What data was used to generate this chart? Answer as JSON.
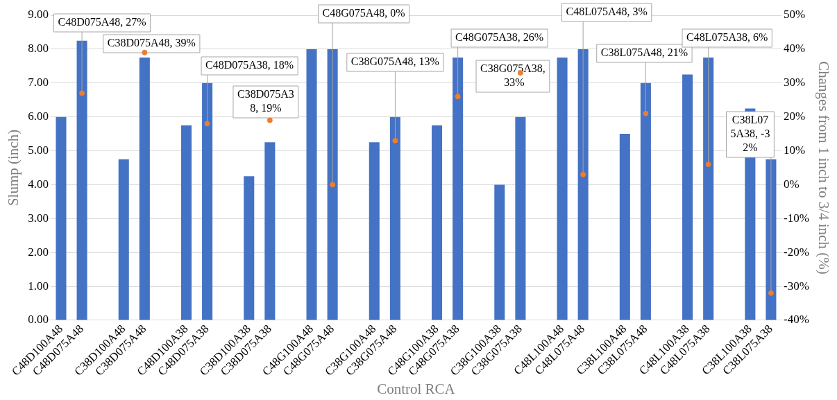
{
  "chart_data": {
    "type": "bar",
    "xlabel": "Control RCA",
    "ylabel": "Slump (inch)",
    "y2label": "Changes from 1 inch to 3/4 inch (%)",
    "categories": [
      "C48D100A48",
      "C48D075A48",
      null,
      "C38D100A48",
      "C38D075A48",
      null,
      "C48D100A38",
      "C48D075A38",
      null,
      "C38D100A38",
      "C38D075A38",
      null,
      "C48G100A48",
      "C48G075A48",
      null,
      "C38G100A48",
      "C38G075A48",
      null,
      "C48G100A38",
      "C48G075A38",
      null,
      "C38G100A38",
      "C38G075A38",
      null,
      "C48L100A48",
      "C48L075A48",
      null,
      "C38L100A48",
      "C38L075A48",
      null,
      "C48L100A38",
      "C48L075A38",
      null,
      "C38L100A38",
      "C38L075A38"
    ],
    "series": [
      {
        "type": "bar",
        "color": "#4472c4",
        "values": [
          6.0,
          8.25,
          null,
          4.75,
          7.75,
          null,
          5.75,
          7.0,
          null,
          4.25,
          5.25,
          null,
          8.0,
          8.0,
          null,
          5.25,
          6.0,
          null,
          5.75,
          7.75,
          null,
          4.0,
          6.0,
          null,
          7.75,
          8.0,
          null,
          5.5,
          7.0,
          null,
          7.25,
          7.75,
          null,
          6.25,
          4.75
        ]
      },
      {
        "type": "scatter",
        "axis": "y2",
        "color": "#ed7d31",
        "marker": "circle",
        "x": [
          "C48D075A48",
          "C38D075A48",
          "C48D075A38",
          "C38D075A38",
          "C48G075A48",
          "C38G075A48",
          "C48G075A38",
          "C38G075A38",
          "C48L075A48",
          "C38L075A48",
          "C48L075A38",
          "C38L075A38"
        ],
        "values": [
          27,
          39,
          18,
          19,
          0,
          13,
          26,
          33,
          3,
          21,
          6,
          -32
        ],
        "value_labels": [
          "C48D075A48, 27%",
          "C38D075A48, 39%",
          "C48D075A38, 18%",
          "C38D075A38, 19%",
          "C48G075A48, 0%",
          "C38G075A48, 13%",
          "C48G075A38, 26%",
          "C38G075A38, 33%",
          "C48L075A48, 3%",
          "C38L075A48, 21%",
          "C48L075A38, 6%",
          "C38L075A38, -32%"
        ]
      }
    ],
    "ylim": [
      0,
      9
    ],
    "yticks": [
      {
        "value": 0,
        "label": "0.00"
      },
      {
        "value": 1,
        "label": "1.00"
      },
      {
        "value": 2,
        "label": "2.00"
      },
      {
        "value": 3,
        "label": "3.00"
      },
      {
        "value": 4,
        "label": "4.00"
      },
      {
        "value": 5,
        "label": "5.00"
      },
      {
        "value": 6,
        "label": "6.00"
      },
      {
        "value": 7,
        "label": "7.00"
      },
      {
        "value": 8,
        "label": "8.00"
      },
      {
        "value": 9,
        "label": "9.00"
      }
    ],
    "y2lim": [
      -40,
      50
    ],
    "y2ticks": [
      {
        "value": -40,
        "label": "-40%"
      },
      {
        "value": -30,
        "label": "-30%"
      },
      {
        "value": -20,
        "label": "-20%"
      },
      {
        "value": -10,
        "label": "-10%"
      },
      {
        "value": 0,
        "label": "0%"
      },
      {
        "value": 10,
        "label": "10%"
      },
      {
        "value": 20,
        "label": "20%"
      },
      {
        "value": 30,
        "label": "30%"
      },
      {
        "value": 40,
        "label": "40%"
      },
      {
        "value": 50,
        "label": "50%"
      }
    ],
    "grid": "y",
    "legend": false
  }
}
